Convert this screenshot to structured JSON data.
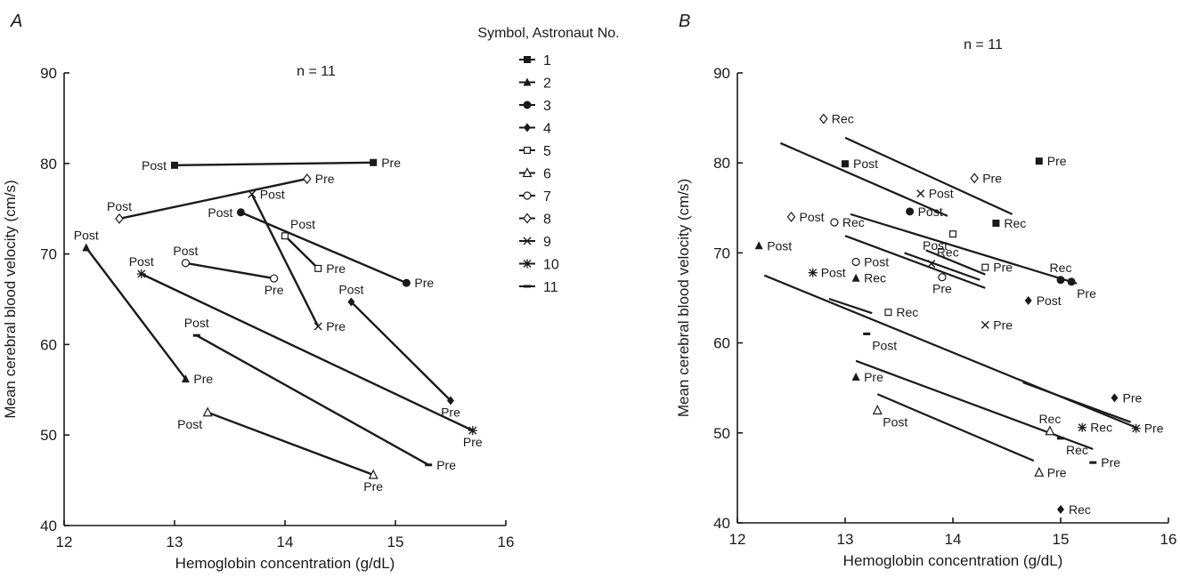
{
  "chart_data": [
    {
      "type": "line",
      "panel_label": "A",
      "annotation": "n = 11",
      "xlabel": "Hemoglobin concentration (g/dL)",
      "ylabel": "Mean cerebral blood velocity (cm/s)",
      "xlim": [
        12,
        16
      ],
      "ylim": [
        40,
        90
      ],
      "xticks": [
        "12",
        "13",
        "14",
        "15",
        "16"
      ],
      "yticks": [
        "40",
        "50",
        "60",
        "70",
        "80",
        "90"
      ],
      "grid": false,
      "legend_title": "Symbol, Astronaut No.",
      "legend": [
        {
          "label": "1",
          "marker": "square-filled"
        },
        {
          "label": "2",
          "marker": "triangle-filled"
        },
        {
          "label": "3",
          "marker": "circle-filled"
        },
        {
          "label": "4",
          "marker": "diamond-filled"
        },
        {
          "label": "5",
          "marker": "square-open"
        },
        {
          "label": "6",
          "marker": "triangle-open"
        },
        {
          "label": "7",
          "marker": "circle-open"
        },
        {
          "label": "8",
          "marker": "diamond-open"
        },
        {
          "label": "9",
          "marker": "x"
        },
        {
          "label": "10",
          "marker": "star"
        },
        {
          "label": "11",
          "marker": "dash"
        }
      ],
      "series": [
        {
          "name": "1",
          "marker": "square-filled",
          "points": [
            {
              "x": 13.0,
              "y": 79.8,
              "label": "Post",
              "pos": "left"
            },
            {
              "x": 14.8,
              "y": 80.1,
              "label": "Pre",
              "pos": "right"
            }
          ]
        },
        {
          "name": "2",
          "marker": "triangle-filled",
          "points": [
            {
              "x": 12.2,
              "y": 70.7,
              "label": "Post",
              "pos": "above"
            },
            {
              "x": 13.1,
              "y": 56.2,
              "label": "Pre",
              "pos": "right"
            }
          ]
        },
        {
          "name": "3",
          "marker": "circle-filled",
          "points": [
            {
              "x": 13.6,
              "y": 74.6,
              "label": "Post",
              "pos": "left"
            },
            {
              "x": 15.1,
              "y": 66.8,
              "label": "Pre",
              "pos": "right"
            }
          ]
        },
        {
          "name": "4",
          "marker": "diamond-filled",
          "points": [
            {
              "x": 14.6,
              "y": 64.7,
              "label": "Post",
              "pos": "above"
            },
            {
              "x": 15.5,
              "y": 53.8,
              "label": "Pre",
              "pos": "below"
            }
          ]
        },
        {
          "name": "5",
          "marker": "square-open",
          "points": [
            {
              "x": 14.0,
              "y": 72.0,
              "label": "Post",
              "pos": "above-right"
            },
            {
              "x": 14.3,
              "y": 68.4,
              "label": "Pre",
              "pos": "right"
            }
          ]
        },
        {
          "name": "6",
          "marker": "triangle-open",
          "points": [
            {
              "x": 13.3,
              "y": 52.5,
              "label": "Post",
              "pos": "below-left"
            },
            {
              "x": 14.8,
              "y": 45.6,
              "label": "Pre",
              "pos": "below"
            }
          ]
        },
        {
          "name": "7",
          "marker": "circle-open",
          "points": [
            {
              "x": 13.1,
              "y": 69.0,
              "label": "Post",
              "pos": "above"
            },
            {
              "x": 13.9,
              "y": 67.3,
              "label": "Pre",
              "pos": "below"
            }
          ]
        },
        {
          "name": "8",
          "marker": "diamond-open",
          "points": [
            {
              "x": 12.5,
              "y": 73.9,
              "label": "Post",
              "pos": "above"
            },
            {
              "x": 14.2,
              "y": 78.3,
              "label": "Pre",
              "pos": "right"
            }
          ]
        },
        {
          "name": "9",
          "marker": "x",
          "points": [
            {
              "x": 13.7,
              "y": 76.6,
              "label": "Post",
              "pos": "right"
            },
            {
              "x": 14.3,
              "y": 62.0,
              "label": "Pre",
              "pos": "right"
            }
          ]
        },
        {
          "name": "10",
          "marker": "star",
          "points": [
            {
              "x": 12.7,
              "y": 67.8,
              "label": "Post",
              "pos": "above"
            },
            {
              "x": 15.7,
              "y": 50.5,
              "label": "Pre",
              "pos": "below"
            }
          ]
        },
        {
          "name": "11",
          "marker": "dash",
          "points": [
            {
              "x": 13.2,
              "y": 61.0,
              "label": "Post",
              "pos": "above"
            },
            {
              "x": 15.3,
              "y": 46.7,
              "label": "Pre",
              "pos": "right"
            }
          ]
        }
      ]
    },
    {
      "type": "scatter",
      "panel_label": "B",
      "annotation": "n = 11",
      "xlabel": "Hemoglobin concentration (g/dL)",
      "ylabel": "Mean cerebral blood velocity (cm/s)",
      "xlim": [
        12,
        16
      ],
      "ylim": [
        40,
        90
      ],
      "xticks": [
        "12",
        "13",
        "14",
        "15",
        "16"
      ],
      "yticks": [
        "40",
        "50",
        "60",
        "70",
        "80",
        "90"
      ],
      "grid": false,
      "points": [
        {
          "astronaut": "1",
          "marker": "square-filled",
          "x": 13.0,
          "y": 79.9,
          "label": "Post",
          "pos": "right"
        },
        {
          "astronaut": "1",
          "marker": "square-filled",
          "x": 14.8,
          "y": 80.2,
          "label": "Pre",
          "pos": "right"
        },
        {
          "astronaut": "1",
          "marker": "square-filled",
          "x": 14.4,
          "y": 73.3,
          "label": "Rec",
          "pos": "right"
        },
        {
          "astronaut": "2",
          "marker": "triangle-filled",
          "x": 12.2,
          "y": 70.8,
          "label": "Post",
          "pos": "right"
        },
        {
          "astronaut": "2",
          "marker": "triangle-filled",
          "x": 13.1,
          "y": 67.2,
          "label": "Rec",
          "pos": "right"
        },
        {
          "astronaut": "2",
          "marker": "triangle-filled",
          "x": 13.1,
          "y": 56.2,
          "label": "Pre",
          "pos": "right"
        },
        {
          "astronaut": "3",
          "marker": "circle-filled",
          "x": 13.6,
          "y": 74.6,
          "label": "Post",
          "pos": "right"
        },
        {
          "astronaut": "3",
          "marker": "circle-filled",
          "x": 15.0,
          "y": 67.0,
          "label": "Rec",
          "pos": "above"
        },
        {
          "astronaut": "3",
          "marker": "circle-filled",
          "x": 15.1,
          "y": 66.8,
          "label": "Pre",
          "pos": "below-right"
        },
        {
          "astronaut": "4",
          "marker": "diamond-filled",
          "x": 14.7,
          "y": 64.7,
          "label": "Post",
          "pos": "right"
        },
        {
          "astronaut": "4",
          "marker": "diamond-filled",
          "x": 15.5,
          "y": 53.9,
          "label": "Pre",
          "pos": "right"
        },
        {
          "astronaut": "4",
          "marker": "diamond-filled",
          "x": 15.0,
          "y": 41.5,
          "label": "Rec",
          "pos": "right"
        },
        {
          "astronaut": "5",
          "marker": "square-open",
          "x": 14.0,
          "y": 72.1,
          "label": "Post",
          "pos": "below-left"
        },
        {
          "astronaut": "5",
          "marker": "square-open",
          "x": 14.3,
          "y": 68.4,
          "label": "Pre",
          "pos": "right"
        },
        {
          "astronaut": "5",
          "marker": "square-open",
          "x": 13.4,
          "y": 63.4,
          "label": "Rec",
          "pos": "right"
        },
        {
          "astronaut": "6",
          "marker": "triangle-open",
          "x": 13.3,
          "y": 52.5,
          "label": "Post",
          "pos": "below-right"
        },
        {
          "astronaut": "6",
          "marker": "triangle-open",
          "x": 14.9,
          "y": 50.2,
          "label": "Rec",
          "pos": "above"
        },
        {
          "astronaut": "6",
          "marker": "triangle-open",
          "x": 14.8,
          "y": 45.6,
          "label": "Pre",
          "pos": "right"
        },
        {
          "astronaut": "7",
          "marker": "circle-open",
          "x": 13.1,
          "y": 69.0,
          "label": "Post",
          "pos": "right"
        },
        {
          "astronaut": "7",
          "marker": "circle-open",
          "x": 12.9,
          "y": 73.4,
          "label": "Rec",
          "pos": "right"
        },
        {
          "astronaut": "7",
          "marker": "circle-open",
          "x": 13.9,
          "y": 67.3,
          "label": "Pre",
          "pos": "below"
        },
        {
          "astronaut": "8",
          "marker": "diamond-open",
          "x": 12.8,
          "y": 84.9,
          "label": "Rec",
          "pos": "right"
        },
        {
          "astronaut": "8",
          "marker": "diamond-open",
          "x": 12.5,
          "y": 74.0,
          "label": "Post",
          "pos": "right"
        },
        {
          "astronaut": "8",
          "marker": "diamond-open",
          "x": 14.2,
          "y": 78.3,
          "label": "Pre",
          "pos": "right"
        },
        {
          "astronaut": "9",
          "marker": "x",
          "x": 13.7,
          "y": 76.6,
          "label": "Post",
          "pos": "right"
        },
        {
          "astronaut": "9",
          "marker": "x",
          "x": 13.8,
          "y": 68.8,
          "label": "Rec",
          "pos": "above-right"
        },
        {
          "astronaut": "9",
          "marker": "x",
          "x": 14.3,
          "y": 62.0,
          "label": "Pre",
          "pos": "right"
        },
        {
          "astronaut": "10",
          "marker": "star",
          "x": 12.7,
          "y": 67.8,
          "label": "Post",
          "pos": "right"
        },
        {
          "astronaut": "10",
          "marker": "star",
          "x": 15.2,
          "y": 50.6,
          "label": "Rec",
          "pos": "right"
        },
        {
          "astronaut": "10",
          "marker": "star",
          "x": 15.7,
          "y": 50.5,
          "label": "Pre",
          "pos": "right"
        },
        {
          "astronaut": "11",
          "marker": "dash",
          "x": 13.2,
          "y": 61.0,
          "label": "Post",
          "pos": "below-right"
        },
        {
          "astronaut": "11",
          "marker": "dash",
          "x": 15.0,
          "y": 49.4,
          "label": "Rec",
          "pos": "below-right"
        },
        {
          "astronaut": "11",
          "marker": "dash",
          "x": 15.3,
          "y": 46.7,
          "label": "Pre",
          "pos": "right"
        }
      ],
      "regression_lines": [
        {
          "x": [
            13.0,
            14.55
          ],
          "y": [
            82.8,
            74.3
          ]
        },
        {
          "x": [
            12.4,
            13.95
          ],
          "y": [
            82.2,
            74.1
          ]
        },
        {
          "x": [
            13.05,
            15.15
          ],
          "y": [
            74.3,
            66.6
          ]
        },
        {
          "x": [
            13.0,
            14.3
          ],
          "y": [
            71.9,
            66.1
          ]
        },
        {
          "x": [
            13.55,
            14.25
          ],
          "y": [
            70.0,
            67.0
          ]
        },
        {
          "x": [
            13.75,
            14.3
          ],
          "y": [
            70.3,
            67.6
          ]
        },
        {
          "x": [
            12.25,
            15.7
          ],
          "y": [
            67.5,
            50.6
          ]
        },
        {
          "x": [
            12.85,
            13.25
          ],
          "y": [
            64.9,
            63.3
          ]
        },
        {
          "x": [
            13.1,
            15.3
          ],
          "y": [
            58.0,
            48.2
          ]
        },
        {
          "x": [
            13.3,
            14.75
          ],
          "y": [
            54.3,
            46.9
          ]
        },
        {
          "x": [
            14.65,
            15.65
          ],
          "y": [
            55.6,
            51.2
          ]
        }
      ]
    }
  ]
}
